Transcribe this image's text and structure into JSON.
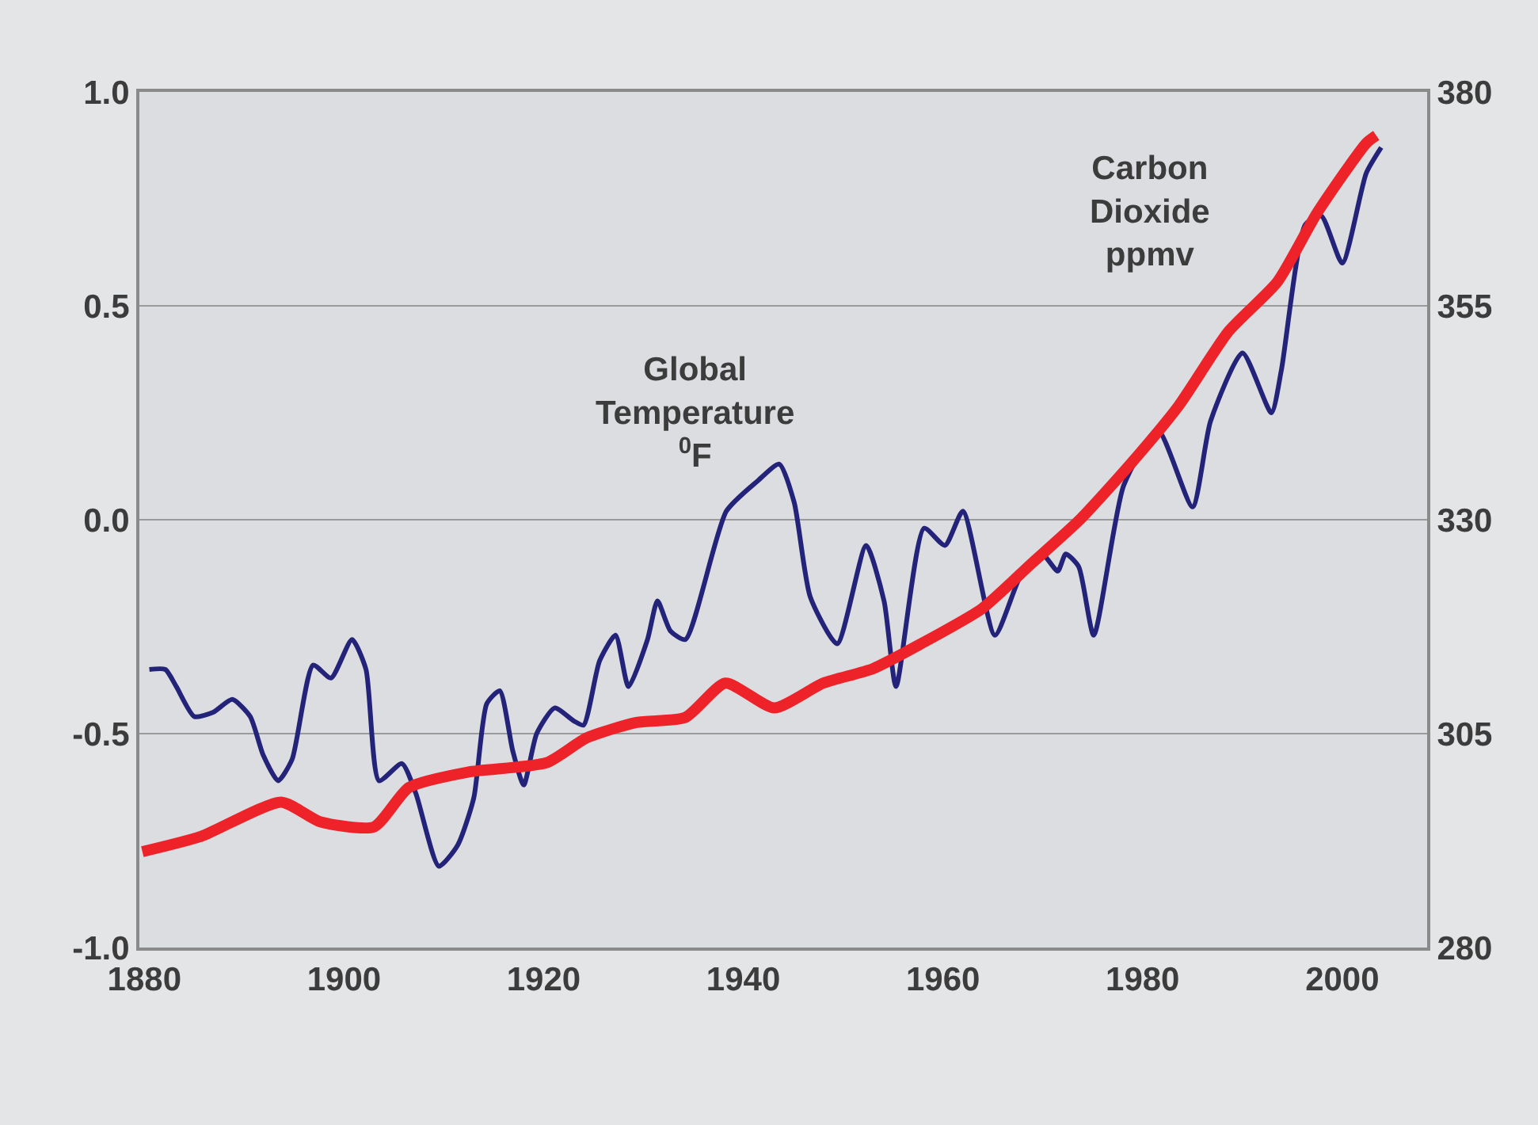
{
  "chart_data": {
    "type": "line",
    "xlim": [
      1879.5,
      2008.5
    ],
    "xticks": [
      1880,
      1900,
      1920,
      1940,
      1960,
      1980,
      2000
    ],
    "ylim": [
      -1,
      1
    ],
    "yticks": [
      {
        "value": -1,
        "label": "-1.0"
      },
      {
        "value": -0.5,
        "label": "-0.5"
      },
      {
        "value": 0,
        "label": "0.0"
      },
      {
        "value": 0.5,
        "label": "0.5"
      },
      {
        "value": 1,
        "label": "1.0"
      }
    ],
    "y2lim": [
      280,
      380
    ],
    "y2ticks": [
      280,
      305,
      330,
      355,
      380
    ],
    "grid": "y",
    "marker": "none",
    "line_style": "solid",
    "series": [
      {
        "color": "#23237a",
        "axis": "y",
        "x": [
          1880.5,
          1882.1,
          1883.2,
          1885.0,
          1886.9,
          1888.8,
          1890.6,
          1891.9,
          1893.4,
          1894.8,
          1896.9,
          1898.7,
          1900.8,
          1902.2,
          1903.5,
          1905.8,
          1907.2,
          1909.5,
          1911.4,
          1913.0,
          1914.3,
          1915.6,
          1916.9,
          1918.0,
          1919.3,
          1921.1,
          1923.0,
          1924.0,
          1925.6,
          1927.2,
          1928.5,
          1930.4,
          1931.4,
          1932.7,
          1934.2,
          1938.3,
          1941.4,
          1943.6,
          1945.1,
          1946.7,
          1949.4,
          1952.3,
          1954.1,
          1955.3,
          1958.1,
          1960.2,
          1962.0,
          1965.2,
          1967.8,
          1969.9,
          1971.5,
          1972.3,
          1973.6,
          1975.1,
          1978.1,
          1981.5,
          1985.0,
          1986.8,
          1990.0,
          1992.9,
          1993.9,
          1996.3,
          1997.9,
          2000.0,
          2002.4,
          2003.9
        ],
        "values": [
          -0.35,
          -0.35,
          -0.39,
          -0.46,
          -0.45,
          -0.42,
          -0.46,
          -0.55,
          -0.61,
          -0.56,
          -0.34,
          -0.37,
          -0.28,
          -0.35,
          -0.61,
          -0.57,
          -0.64,
          -0.81,
          -0.76,
          -0.65,
          -0.43,
          -0.4,
          -0.54,
          -0.62,
          -0.5,
          -0.44,
          -0.47,
          -0.48,
          -0.33,
          -0.27,
          -0.39,
          -0.28,
          -0.19,
          -0.26,
          -0.28,
          0.02,
          0.09,
          0.13,
          0.04,
          -0.18,
          -0.29,
          -0.06,
          -0.19,
          -0.39,
          -0.02,
          -0.06,
          0.02,
          -0.27,
          -0.13,
          -0.08,
          -0.12,
          -0.08,
          -0.11,
          -0.27,
          0.08,
          0.21,
          0.03,
          0.23,
          0.39,
          0.25,
          0.35,
          0.69,
          0.71,
          0.6,
          0.81,
          0.87
        ]
      },
      {
        "color": "#ee2229",
        "axis": "y2",
        "x": [
          1879.8,
          1885.7,
          1893.7,
          1897.6,
          1903.0,
          1906.5,
          1912.4,
          1920.3,
          1924.3,
          1929.3,
          1934.2,
          1938.2,
          1943.1,
          1948.0,
          1953.0,
          1957.8,
          1963.9,
          1968.8,
          1973.7,
          1978.7,
          1983.6,
          1988.6,
          1993.5,
          1997.5,
          2002.4,
          2003.4
        ],
        "values": [
          291.2,
          293.0,
          297.0,
          294.7,
          294.1,
          298.7,
          300.5,
          301.6,
          304.5,
          306.3,
          306.9,
          310.9,
          308.0,
          310.9,
          312.6,
          315.5,
          319.6,
          324.8,
          330.0,
          336.4,
          343.3,
          352.0,
          357.8,
          365.9,
          374.0,
          374.9
        ]
      }
    ],
    "annotations": [
      "Global\nTemperature\n$^{0}$F",
      "Carbon\nDioxide\nppmv"
    ]
  }
}
